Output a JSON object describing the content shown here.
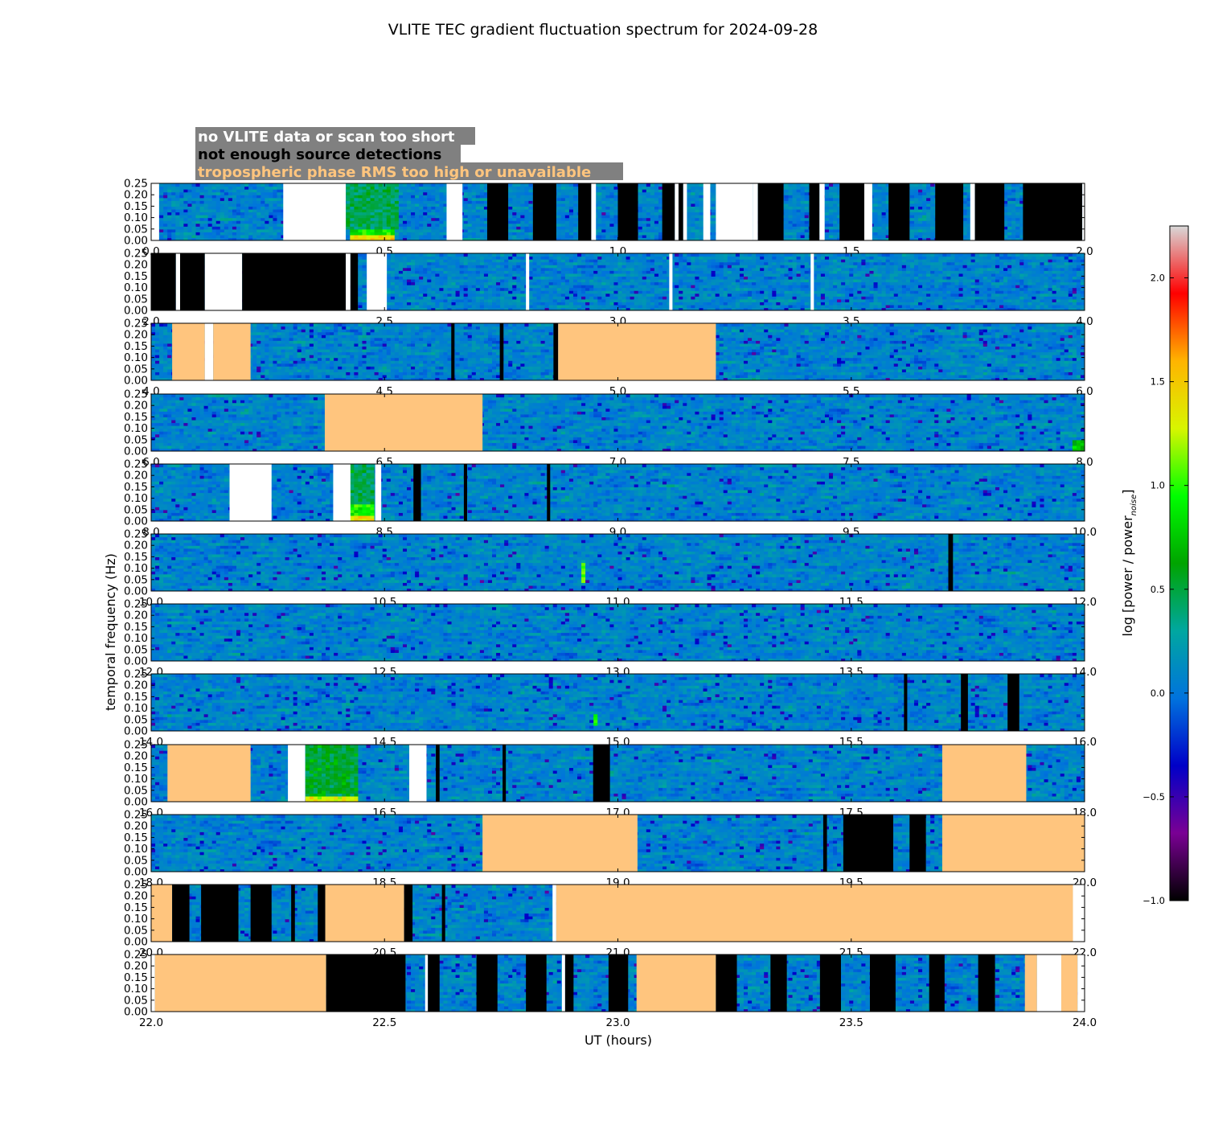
{
  "chart_data": {
    "type": "heatmap",
    "title": "VLITE TEC gradient fluctuation spectrum for 2024-09-28",
    "xlabel": "UT (hours)",
    "ylabel": "temporal frequency (Hz)",
    "colorbar": {
      "label_main": "log [power / power",
      "label_sub": "noise",
      "label_close": "]",
      "range": [
        -1.0,
        2.25
      ],
      "ticks": [
        "−1.0",
        "−0.5",
        "0.0",
        "0.5",
        "1.0",
        "1.5",
        "2.0"
      ],
      "tick_values": [
        -1.0,
        -0.5,
        0.0,
        0.5,
        1.0,
        1.5,
        2.0
      ],
      "colormap": [
        "#000000",
        "#7a0094",
        "#0000c8",
        "#0073dd",
        "#00a7a0",
        "#00a400",
        "#00ff00",
        "#d8f500",
        "#ffb400",
        "#ff0000",
        "#d8d8d8"
      ]
    },
    "legend": [
      {
        "label": "no VLITE data or scan too short",
        "text_color": "#ffffff",
        "fill_color": "#ffffff"
      },
      {
        "label": "not enough source detections",
        "text_color": "#000000",
        "fill_color": "#000000"
      },
      {
        "label": "tropospheric phase RMS too high or unavailable",
        "text_color": "#ffc57e",
        "fill_color": "#ffc57e"
      }
    ],
    "legend_background": "#808080",
    "ylim": [
      0.0,
      0.25
    ],
    "y_ticks": [
      "0.00",
      "0.05",
      "0.10",
      "0.15",
      "0.20",
      "0.25"
    ],
    "y_tick_values": [
      0.0,
      0.05,
      0.1,
      0.15,
      0.2,
      0.25
    ],
    "panels": [
      {
        "xlim": [
          0.0,
          2.0
        ],
        "x_ticks": [
          "0.0",
          "0.5",
          "1.0",
          "1.5",
          "2.0"
        ],
        "masks": [
          {
            "type": "white",
            "x": [
              0.0,
              0.017
            ]
          },
          {
            "type": "white",
            "x": [
              0.283,
              0.417
            ]
          },
          {
            "type": "white",
            "x": [
              0.633,
              0.667
            ]
          },
          {
            "type": "black",
            "x": [
              0.72,
              0.765
            ]
          },
          {
            "type": "black",
            "x": [
              0.818,
              0.868
            ]
          },
          {
            "type": "black",
            "x": [
              0.915,
              0.943
            ]
          },
          {
            "type": "white",
            "x": [
              0.943,
              0.953
            ]
          },
          {
            "type": "black",
            "x": [
              1.0,
              1.043
            ]
          },
          {
            "type": "black",
            "x": [
              1.095,
              1.122
            ]
          },
          {
            "type": "white",
            "x": [
              1.122,
              1.13
            ]
          },
          {
            "type": "black",
            "x": [
              1.13,
              1.14
            ]
          },
          {
            "type": "white",
            "x": [
              1.14,
              1.148
            ]
          },
          {
            "type": "white",
            "x": [
              1.183,
              1.198
            ]
          },
          {
            "type": "white",
            "x": [
              1.21,
              1.29
            ]
          },
          {
            "type": "white",
            "x": [
              1.29,
              1.3
            ]
          },
          {
            "type": "black",
            "x": [
              1.3,
              1.355
            ]
          },
          {
            "type": "black",
            "x": [
              1.41,
              1.432
            ]
          },
          {
            "type": "white",
            "x": [
              1.432,
              1.443
            ]
          },
          {
            "type": "black",
            "x": [
              1.475,
              1.528
            ]
          },
          {
            "type": "white",
            "x": [
              1.528,
              1.545
            ]
          },
          {
            "type": "black",
            "x": [
              1.58,
              1.625
            ]
          },
          {
            "type": "black",
            "x": [
              1.68,
              1.74
            ]
          },
          {
            "type": "white",
            "x": [
              1.755,
              1.765
            ]
          },
          {
            "type": "black",
            "x": [
              1.765,
              1.828
            ]
          },
          {
            "type": "black",
            "x": [
              1.868,
              1.995
            ]
          },
          {
            "type": "white",
            "x": [
              1.995,
              2.0
            ]
          }
        ],
        "hotspots": [
          {
            "x": [
              0.43,
              0.52
            ],
            "y": [
              0.0,
              0.02
            ],
            "level": 1.4
          },
          {
            "x": [
              0.43,
              0.52
            ],
            "y": [
              0.02,
              0.05
            ],
            "level": 0.9
          },
          {
            "x": [
              0.42,
              0.53
            ],
            "y": [
              0.05,
              0.25
            ],
            "level": 0.45
          }
        ]
      },
      {
        "xlim": [
          2.0,
          4.0
        ],
        "x_ticks": [
          "2.0",
          "2.5",
          "3.0",
          "3.5",
          "4.0"
        ],
        "masks": [
          {
            "type": "black",
            "x": [
              2.0,
              2.053
            ]
          },
          {
            "type": "white",
            "x": [
              2.053,
              2.062
            ]
          },
          {
            "type": "black",
            "x": [
              2.062,
              2.115
            ]
          },
          {
            "type": "white",
            "x": [
              2.115,
              2.195
            ]
          },
          {
            "type": "black",
            "x": [
              2.195,
              2.417
            ]
          },
          {
            "type": "white",
            "x": [
              2.417,
              2.427
            ]
          },
          {
            "type": "black",
            "x": [
              2.427,
              2.443
            ]
          },
          {
            "type": "white",
            "x": [
              2.462,
              2.505
            ]
          },
          {
            "type": "white",
            "x": [
              2.803,
              2.81
            ]
          },
          {
            "type": "white",
            "x": [
              3.11,
              3.117
            ]
          },
          {
            "type": "white",
            "x": [
              3.413,
              3.42
            ]
          }
        ],
        "hotspots": []
      },
      {
        "xlim": [
          4.0,
          6.0
        ],
        "x_ticks": [
          "4.0",
          "4.5",
          "5.0",
          "5.5",
          "6.0"
        ],
        "masks": [
          {
            "type": "orange",
            "x": [
              4.045,
              4.115
            ]
          },
          {
            "type": "white",
            "x": [
              4.115,
              4.133
            ]
          },
          {
            "type": "orange",
            "x": [
              4.133,
              4.213
            ]
          },
          {
            "type": "black",
            "x": [
              4.643,
              4.65
            ]
          },
          {
            "type": "black",
            "x": [
              4.747,
              4.755
            ]
          },
          {
            "type": "black",
            "x": [
              4.862,
              4.872
            ]
          },
          {
            "type": "orange",
            "x": [
              4.872,
              5.21
            ]
          }
        ],
        "hotspots": []
      },
      {
        "xlim": [
          6.0,
          8.0
        ],
        "x_ticks": [
          "6.0",
          "6.5",
          "7.0",
          "7.5",
          "8.0"
        ],
        "masks": [
          {
            "type": "orange",
            "x": [
              6.372,
              6.71
            ]
          }
        ],
        "hotspots": [
          {
            "x": [
              7.97,
              8.0
            ],
            "y": [
              0.0,
              0.05
            ],
            "level": 0.7
          }
        ]
      },
      {
        "xlim": [
          8.0,
          10.0
        ],
        "x_ticks": [
          "8.0",
          "8.5",
          "9.0",
          "9.5",
          "10.0"
        ],
        "masks": [
          {
            "type": "white",
            "x": [
              8.168,
              8.258
            ]
          },
          {
            "type": "white",
            "x": [
              8.39,
              8.427
            ]
          },
          {
            "type": "white",
            "x": [
              8.48,
              8.493
            ]
          },
          {
            "type": "black",
            "x": [
              8.562,
              8.578
            ]
          },
          {
            "type": "black",
            "x": [
              8.67,
              8.677
            ]
          },
          {
            "type": "black",
            "x": [
              8.848,
              8.855
            ]
          }
        ],
        "hotspots": [
          {
            "x": [
              8.427,
              8.48
            ],
            "y": [
              0.0,
              0.03
            ],
            "level": 1.4
          },
          {
            "x": [
              8.427,
              8.48
            ],
            "y": [
              0.03,
              0.07
            ],
            "level": 0.95
          },
          {
            "x": [
              8.427,
              8.48
            ],
            "y": [
              0.07,
              0.25
            ],
            "level": 0.45
          }
        ]
      },
      {
        "xlim": [
          10.0,
          12.0
        ],
        "x_ticks": [
          "10.0",
          "10.5",
          "11.0",
          "11.5",
          "12.0"
        ],
        "masks": [
          {
            "type": "black",
            "x": [
              11.708,
              11.718
            ]
          }
        ],
        "hotspots": [
          {
            "x": [
              10.918,
              10.932
            ],
            "y": [
              0.04,
              0.13
            ],
            "level": 1.1
          }
        ]
      },
      {
        "xlim": [
          12.0,
          14.0
        ],
        "x_ticks": [
          "12.0",
          "12.5",
          "13.0",
          "13.5",
          "14.0"
        ],
        "masks": [],
        "hotspots": []
      },
      {
        "xlim": [
          14.0,
          16.0
        ],
        "x_ticks": [
          "14.0",
          "14.5",
          "15.0",
          "15.5",
          "16.0"
        ],
        "masks": [
          {
            "type": "black",
            "x": [
              15.613,
              15.62
            ]
          },
          {
            "type": "black",
            "x": [
              15.735,
              15.75
            ]
          },
          {
            "type": "black",
            "x": [
              15.835,
              15.86
            ]
          }
        ],
        "hotspots": [
          {
            "x": [
              14.948,
              14.96
            ],
            "y": [
              0.03,
              0.08
            ],
            "level": 0.9
          }
        ]
      },
      {
        "xlim": [
          16.0,
          18.0
        ],
        "x_ticks": [
          "16.0",
          "16.5",
          "17.0",
          "17.5",
          "18.0"
        ],
        "masks": [
          {
            "type": "orange",
            "x": [
              16.035,
              16.213
            ]
          },
          {
            "type": "white",
            "x": [
              16.293,
              16.33
            ]
          },
          {
            "type": "white",
            "x": [
              16.553,
              16.59
            ]
          },
          {
            "type": "black",
            "x": [
              16.61,
              16.618
            ]
          },
          {
            "type": "black",
            "x": [
              16.753,
              16.76
            ]
          },
          {
            "type": "black",
            "x": [
              16.947,
              16.983
            ]
          },
          {
            "type": "orange",
            "x": [
              17.695,
              17.875
            ]
          }
        ],
        "hotspots": [
          {
            "x": [
              16.33,
              16.443
            ],
            "y": [
              0.0,
              0.02
            ],
            "level": 1.3
          },
          {
            "x": [
              16.33,
              16.443
            ],
            "y": [
              0.02,
              0.25
            ],
            "level": 0.55
          }
        ]
      },
      {
        "xlim": [
          18.0,
          20.0
        ],
        "x_ticks": [
          "18.0",
          "18.5",
          "19.0",
          "19.5",
          "20.0"
        ],
        "masks": [
          {
            "type": "orange",
            "x": [
              18.71,
              19.042
            ]
          },
          {
            "type": "black",
            "x": [
              19.44,
              19.448
            ]
          },
          {
            "type": "black",
            "x": [
              19.483,
              19.59
            ]
          },
          {
            "type": "black",
            "x": [
              19.625,
              19.66
            ]
          },
          {
            "type": "orange",
            "x": [
              19.695,
              20.0
            ]
          }
        ],
        "hotspots": []
      },
      {
        "xlim": [
          20.0,
          22.0
        ],
        "x_ticks": [
          "20.0",
          "20.5",
          "21.0",
          "21.5",
          "22.0"
        ],
        "masks": [
          {
            "type": "orange",
            "x": [
              20.0,
              20.045
            ]
          },
          {
            "type": "black",
            "x": [
              20.045,
              20.082
            ]
          },
          {
            "type": "black",
            "x": [
              20.107,
              20.187
            ]
          },
          {
            "type": "black",
            "x": [
              20.213,
              20.258
            ]
          },
          {
            "type": "black",
            "x": [
              20.3,
              20.308
            ]
          },
          {
            "type": "black",
            "x": [
              20.357,
              20.373
            ]
          },
          {
            "type": "orange",
            "x": [
              20.373,
              20.542
            ]
          },
          {
            "type": "black",
            "x": [
              20.542,
              20.56
            ]
          },
          {
            "type": "black",
            "x": [
              20.623,
              20.63
            ]
          },
          {
            "type": "white",
            "x": [
              20.86,
              20.868
            ]
          },
          {
            "type": "orange",
            "x": [
              20.868,
              21.975
            ]
          },
          {
            "type": "white",
            "x": [
              21.975,
              22.0
            ]
          }
        ],
        "hotspots": []
      },
      {
        "xlim": [
          22.0,
          24.0
        ],
        "x_ticks": [
          "22.0",
          "22.5",
          "23.0",
          "23.5",
          "24.0"
        ],
        "masks": [
          {
            "type": "white",
            "x": [
              22.0,
              22.008
            ]
          },
          {
            "type": "orange",
            "x": [
              22.008,
              22.375
            ]
          },
          {
            "type": "black",
            "x": [
              22.375,
              22.545
            ]
          },
          {
            "type": "white",
            "x": [
              22.587,
              22.593
            ]
          },
          {
            "type": "black",
            "x": [
              22.593,
              22.618
            ]
          },
          {
            "type": "black",
            "x": [
              22.697,
              22.742
            ]
          },
          {
            "type": "black",
            "x": [
              22.803,
              22.847
            ]
          },
          {
            "type": "white",
            "x": [
              22.88,
              22.887
            ]
          },
          {
            "type": "black",
            "x": [
              22.887,
              22.905
            ]
          },
          {
            "type": "black",
            "x": [
              22.98,
              23.022
            ]
          },
          {
            "type": "orange",
            "x": [
              23.04,
              23.21
            ]
          },
          {
            "type": "black",
            "x": [
              23.21,
              23.255
            ]
          },
          {
            "type": "black",
            "x": [
              23.327,
              23.362
            ]
          },
          {
            "type": "black",
            "x": [
              23.433,
              23.478
            ]
          },
          {
            "type": "black",
            "x": [
              23.54,
              23.595
            ]
          },
          {
            "type": "black",
            "x": [
              23.667,
              23.7
            ]
          },
          {
            "type": "black",
            "x": [
              23.772,
              23.808
            ]
          },
          {
            "type": "orange",
            "x": [
              23.872,
              23.898
            ]
          },
          {
            "type": "white",
            "x": [
              23.898,
              23.95
            ]
          },
          {
            "type": "orange",
            "x": [
              23.95,
              23.985
            ]
          },
          {
            "type": "white",
            "x": [
              23.985,
              24.0
            ]
          }
        ],
        "hotspots": []
      }
    ]
  }
}
